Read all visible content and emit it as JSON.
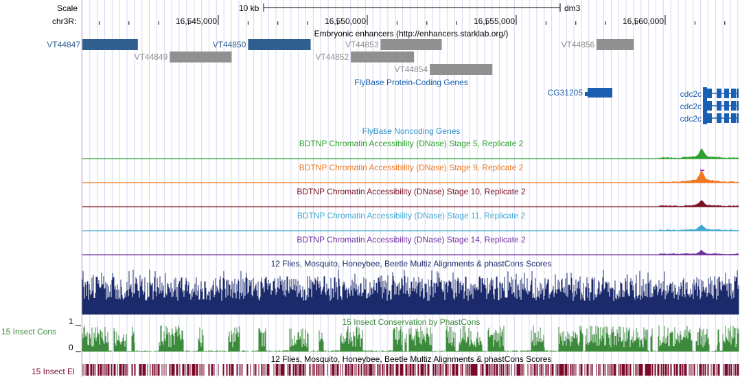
{
  "colors": {
    "enhancer_active": "#2f5f8f",
    "enhancer_inactive": "#909090",
    "flybase_blue": "#1a5fb0",
    "flybase_noncoding": "#2f8fd0",
    "stage5": "#2ca02c",
    "stage9": "#f07820",
    "stage9_peak": "#c020c0",
    "stage10": "#7a1020",
    "stage11": "#40a8d0",
    "stage14": "#7030a0",
    "multiz": "#1b2a6b",
    "cons": "#3c8a3c",
    "elements": "#7a0a2a",
    "grid": "#d6d6f4",
    "left_guide": "#f4b8b8"
  },
  "header": {
    "scale_label": "Scale",
    "scale_bar_text": "10 kb",
    "assembly": "dm3",
    "chrom_label": "chr3R:",
    "positions": [
      {
        "label": "16,545,000",
        "pos": 16545000
      },
      {
        "label": "16,550,000",
        "pos": 16550000
      },
      {
        "label": "16,555,000",
        "pos": 16555000
      },
      {
        "label": "16,560,000",
        "pos": 16560000
      }
    ]
  },
  "tracks": {
    "enhancers": {
      "title": "Embryonic enhancers (http://enhancers.starklab.org/)",
      "items": [
        {
          "name": "VT44847",
          "start": 16540000,
          "end": 16542300,
          "row": 0,
          "active": true
        },
        {
          "name": "VT44850",
          "start": 16546000,
          "end": 16548100,
          "row": 0,
          "active": true
        },
        {
          "name": "VT44853",
          "start": 16550450,
          "end": 16552500,
          "row": 0,
          "active": false
        },
        {
          "name": "VT44856",
          "start": 16557700,
          "end": 16558950,
          "row": 0,
          "active": false
        },
        {
          "name": "VT44849",
          "start": 16543370,
          "end": 16545450,
          "row": 1,
          "active": false
        },
        {
          "name": "VT44852",
          "start": 16549450,
          "end": 16551570,
          "row": 1,
          "active": false
        },
        {
          "name": "VT44854",
          "start": 16552100,
          "end": 16554200,
          "row": 2,
          "active": false
        }
      ]
    },
    "flybase_coding": {
      "title": "FlyBase Protein-Coding Genes",
      "genes": [
        {
          "name": "CG31205",
          "row": 0
        },
        {
          "name": "cdc2c",
          "row": 0
        },
        {
          "name": "cdc2c",
          "row": 1
        },
        {
          "name": "cdc2c",
          "row": 2
        }
      ]
    },
    "flybase_noncoding": {
      "title": "FlyBase Noncoding Genes"
    },
    "dnase": [
      {
        "title": "BDTNP Chromatin Accessibility (DNase) Stage 5, Replicate 2",
        "color_key": "stage5",
        "peak": 14
      },
      {
        "title": "BDTNP Chromatin Accessibility (DNase) Stage 9, Replicate 2",
        "color_key": "stage9",
        "peak": 18
      },
      {
        "title": "BDTNP Chromatin Accessibility (DNase) Stage 10, Replicate 2",
        "color_key": "stage10",
        "peak": 9
      },
      {
        "title": "BDTNP Chromatin Accessibility (DNase) Stage 11, Replicate 2",
        "color_key": "stage11",
        "peak": 9
      },
      {
        "title": "BDTNP Chromatin Accessibility (DNase) Stage 14, Replicate 2",
        "color_key": "stage14",
        "peak": 6
      }
    ],
    "multiz": {
      "title": "12 Flies, Mosquito, Honeybee, Beetle Multiz Alignments & phastCons Scores"
    },
    "cons": {
      "title": "15 Insect Conservation by PhastCons",
      "side_label": "15 Insect Cons",
      "y_max": "1",
      "y_min": "0"
    },
    "elements": {
      "title": "12 Flies, Mosquito, Honeybee, Beetle Multiz Alignments & phastCons Scores",
      "side_label": "15 Insect El"
    }
  }
}
